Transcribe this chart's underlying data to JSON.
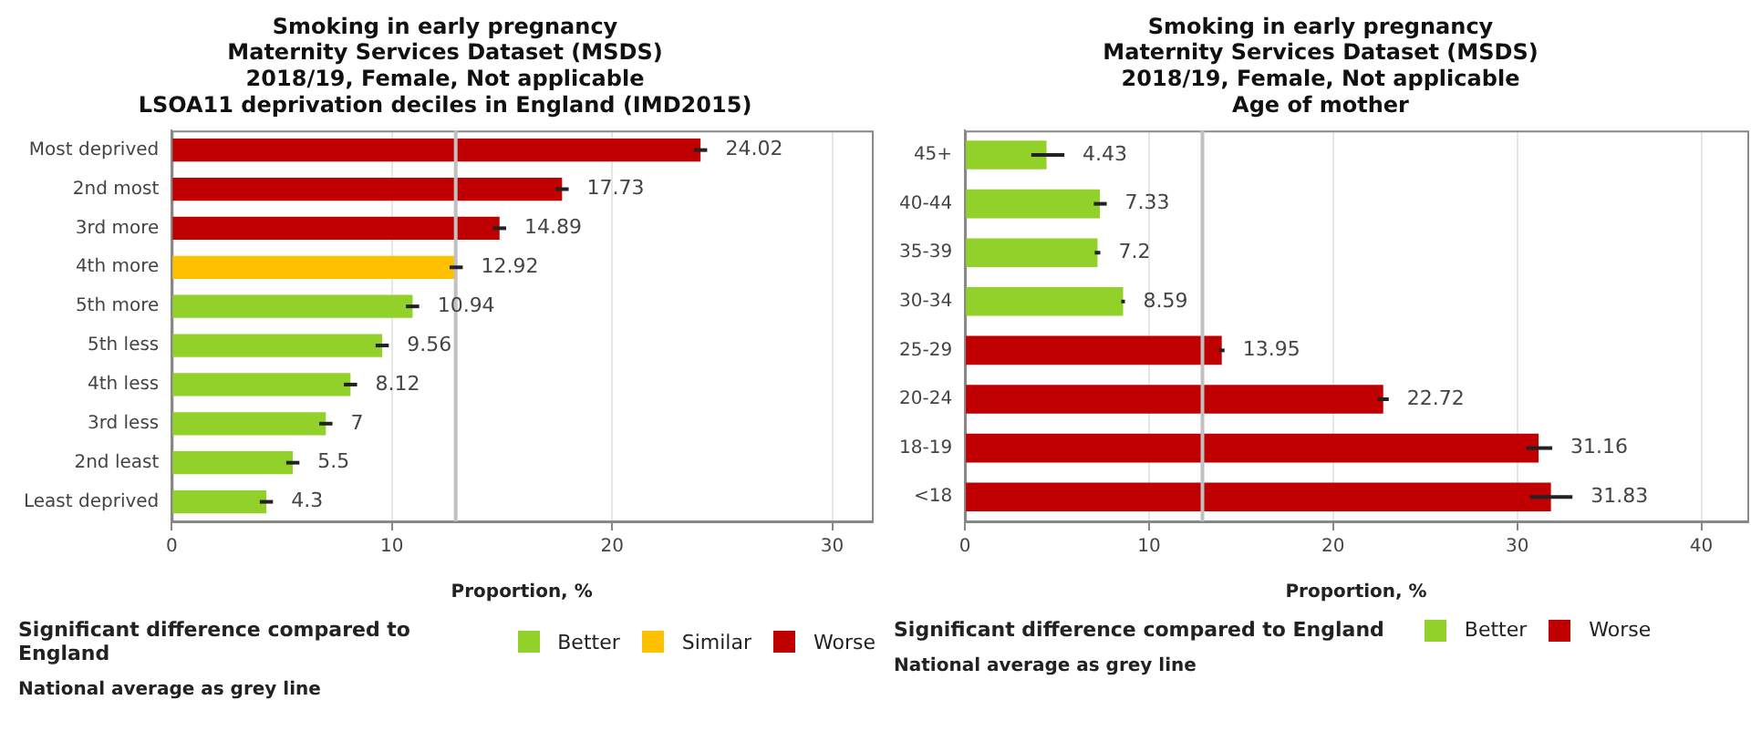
{
  "chart_data": [
    {
      "type": "bar",
      "orientation": "horizontal",
      "stacked": true,
      "title": "Smoking in early pregnancy\nMaternity Services Dataset (MSDS)\n2018/19, Female, Not applicable\nLSOA11 deprivation deciles in England (IMD2015)",
      "xlabel": "Proportion, %",
      "legend_title": "Significant difference compared to England",
      "legend": "bottom",
      "grid": "x",
      "data_labels": true,
      "categories": [
        "Most deprived",
        "2nd most",
        "3rd more",
        "4th more",
        "5th more",
        "5th less",
        "4th less",
        "3rd less",
        "2nd least",
        "Least deprived"
      ],
      "series": [
        {
          "name": "Better",
          "color": "#92d02a",
          "values": [
            null,
            null,
            null,
            null,
            10.94,
            9.56,
            8.12,
            7,
            5.5,
            4.3
          ],
          "errors": [
            null,
            null,
            null,
            null,
            0.3,
            0.3,
            0.3,
            0.3,
            0.3,
            0.3
          ]
        },
        {
          "name": "Similar",
          "color": "#ffc000",
          "values": [
            null,
            null,
            null,
            12.92,
            null,
            null,
            null,
            null,
            null,
            null
          ],
          "errors": [
            null,
            null,
            null,
            0.3,
            null,
            null,
            null,
            null,
            null,
            null
          ]
        },
        {
          "name": "Worse",
          "color": "#c00000",
          "values": [
            24.02,
            17.73,
            14.89,
            null,
            null,
            null,
            null,
            null,
            null,
            null
          ],
          "errors": [
            0.3,
            0.3,
            0.3,
            null,
            null,
            null,
            null,
            null,
            null,
            null
          ]
        }
      ],
      "xlim": [
        0,
        31.8
      ],
      "xticks": [
        0,
        10,
        20,
        30
      ],
      "ref_lines": [
        {
          "axis": "x",
          "value": 12.9,
          "color": "#c0c0c0"
        }
      ],
      "annotations": [
        "National average as grey line"
      ]
    },
    {
      "type": "bar",
      "orientation": "horizontal",
      "stacked": true,
      "title": "Smoking in early pregnancy\nMaternity Services Dataset (MSDS)\n2018/19, Female, Not applicable\nAge of mother",
      "xlabel": "Proportion, %",
      "legend_title": "Significant difference compared to England",
      "legend": "bottom",
      "grid": "x",
      "data_labels": true,
      "categories": [
        "45+",
        "40-44",
        "35-39",
        "30-34",
        "25-29",
        "20-24",
        "18-19",
        "<18"
      ],
      "series": [
        {
          "name": "Better",
          "color": "#92d02a",
          "values": [
            4.43,
            7.33,
            7.2,
            8.59,
            null,
            null,
            null,
            null
          ],
          "errors": [
            [
              3.6,
              5.4
            ],
            [
              7.0,
              7.7
            ],
            0.15,
            0.1,
            null,
            null,
            null,
            null
          ]
        },
        {
          "name": "Worse",
          "color": "#c00000",
          "values": [
            null,
            null,
            null,
            null,
            13.95,
            22.72,
            31.16,
            31.83
          ],
          "errors": [
            null,
            null,
            null,
            null,
            0.15,
            0.3,
            [
              30.5,
              31.9
            ],
            [
              30.7,
              33.0
            ]
          ]
        }
      ],
      "xlim": [
        0,
        42.5
      ],
      "xticks": [
        0,
        10,
        20,
        30,
        40
      ],
      "ref_lines": [
        {
          "axis": "x",
          "value": 12.9,
          "color": "#c0c0c0"
        }
      ],
      "annotations": [
        "National average as grey line"
      ]
    }
  ]
}
